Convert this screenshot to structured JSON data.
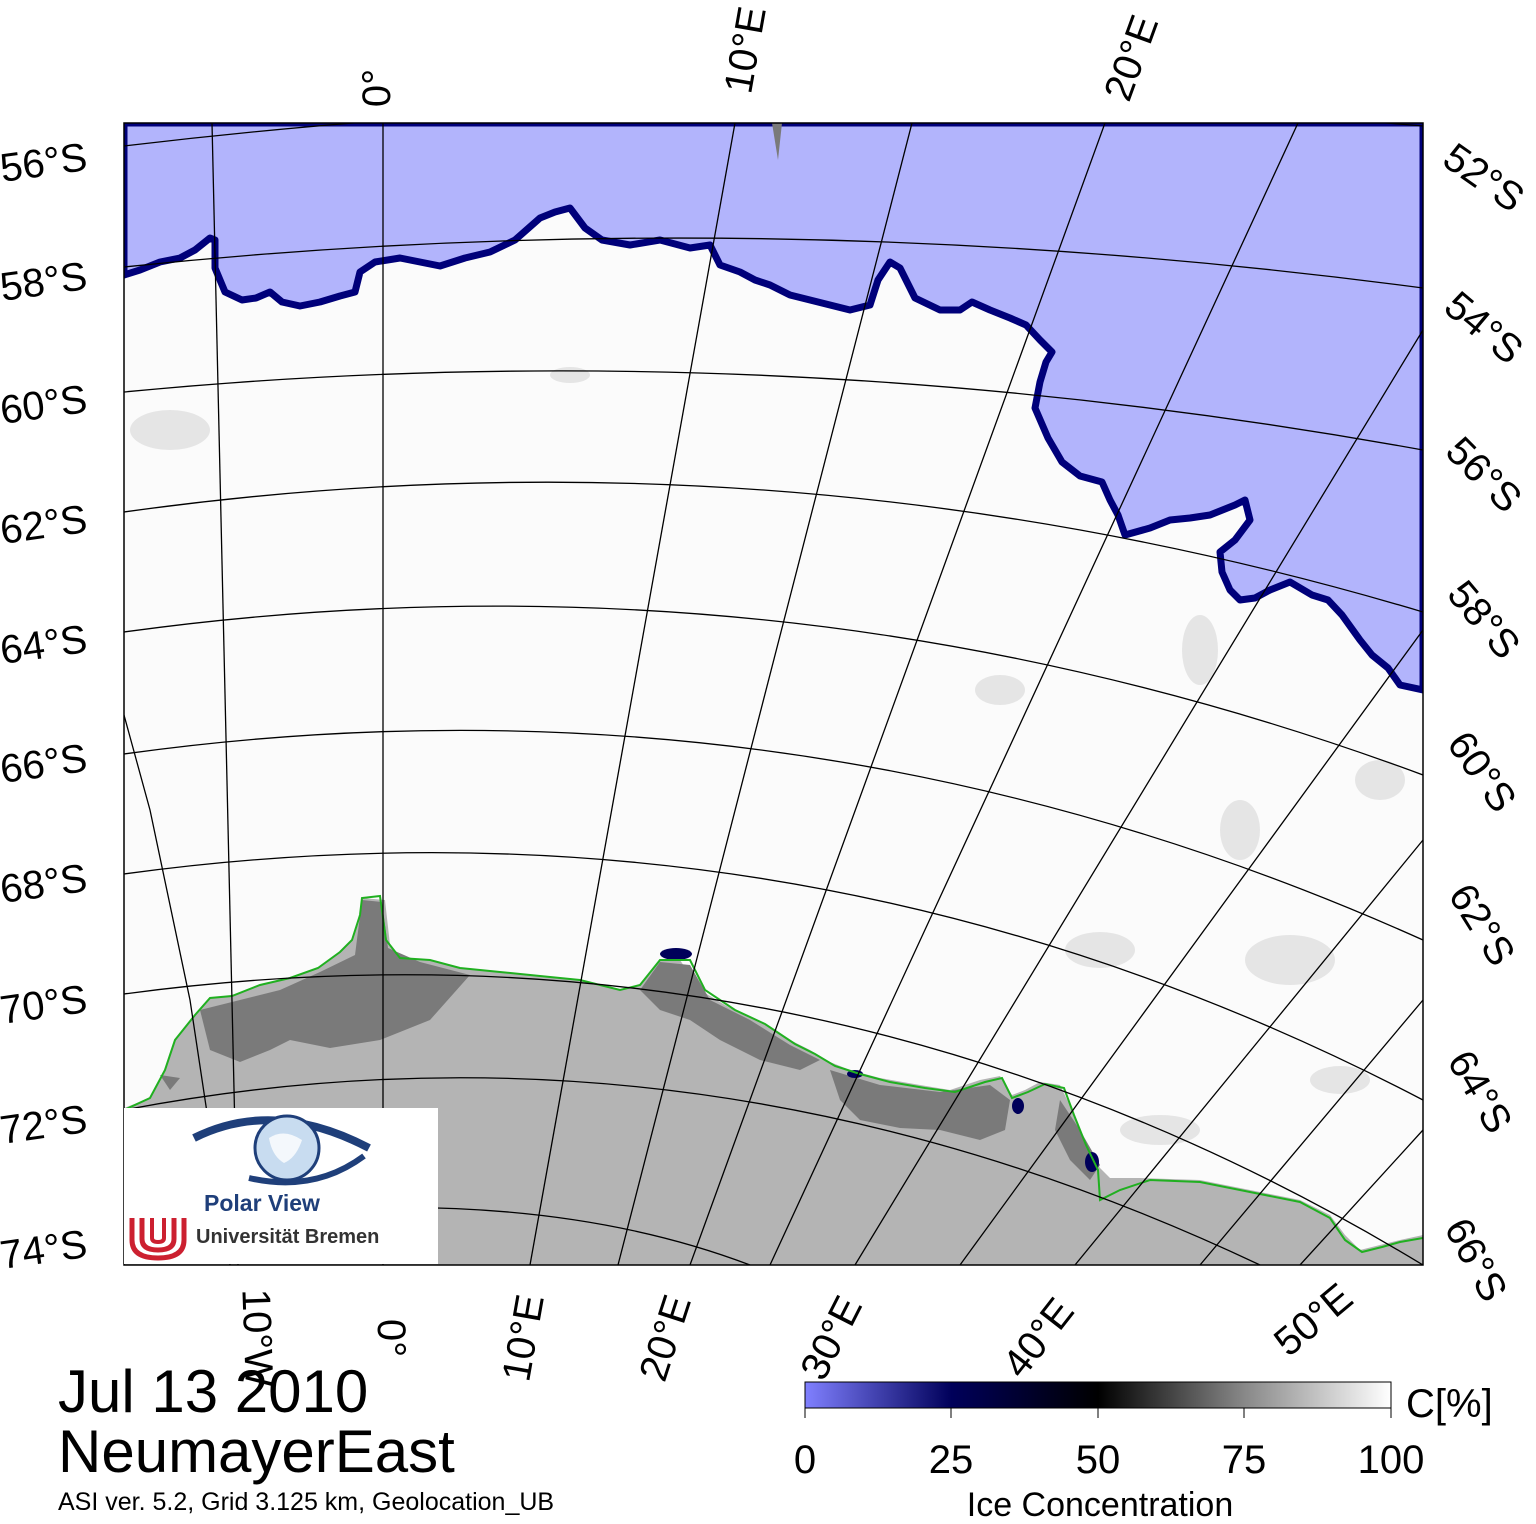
{
  "map": {
    "date": "Jul 13 2010",
    "region": "NeumayerEast",
    "footnote": "ASI ver. 5.2,  Grid 3.125 km, Geolocation_UB",
    "colors": {
      "open_water": "#b2b4fc",
      "ice_edge_dark": "#00007a",
      "land_ice": "#b4b4b4",
      "land_ice_dark": "#7a7a7a",
      "coastline": "#20b020",
      "grid": "#000000"
    }
  },
  "graticule": {
    "lat_labels_left": [
      "56°S",
      "58°S",
      "60°S",
      "62°S",
      "64°S",
      "66°S",
      "68°S",
      "70°S",
      "72°S",
      "74°S"
    ],
    "lat_labels_right": [
      "52°S",
      "54°S",
      "56°S",
      "58°S",
      "60°S",
      "62°S",
      "64°S",
      "66°S"
    ],
    "lon_labels_top": [
      "0°",
      "10°E",
      "20°E"
    ],
    "lon_labels_bottom": [
      "10°W",
      "0°",
      "10°E",
      "20°E",
      "30°E",
      "40°E",
      "50°E"
    ]
  },
  "colorbar": {
    "ticks": [
      "0",
      "25",
      "50",
      "75",
      "100"
    ],
    "unit": "C[%]",
    "label": "Ice Concentration",
    "range": [
      0,
      100
    ],
    "stops": [
      {
        "value": 0,
        "color": "#8080ff"
      },
      {
        "value": 25,
        "color": "#00005a"
      },
      {
        "value": 50,
        "color": "#000000"
      },
      {
        "value": 75,
        "color": "#888888"
      },
      {
        "value": 100,
        "color": "#ffffff"
      }
    ]
  },
  "logo": {
    "title": "Polar View",
    "institution": "Universität Bremen",
    "eye_icon": "eye-globe-icon",
    "uni_icon": "bremen-u-icon"
  }
}
